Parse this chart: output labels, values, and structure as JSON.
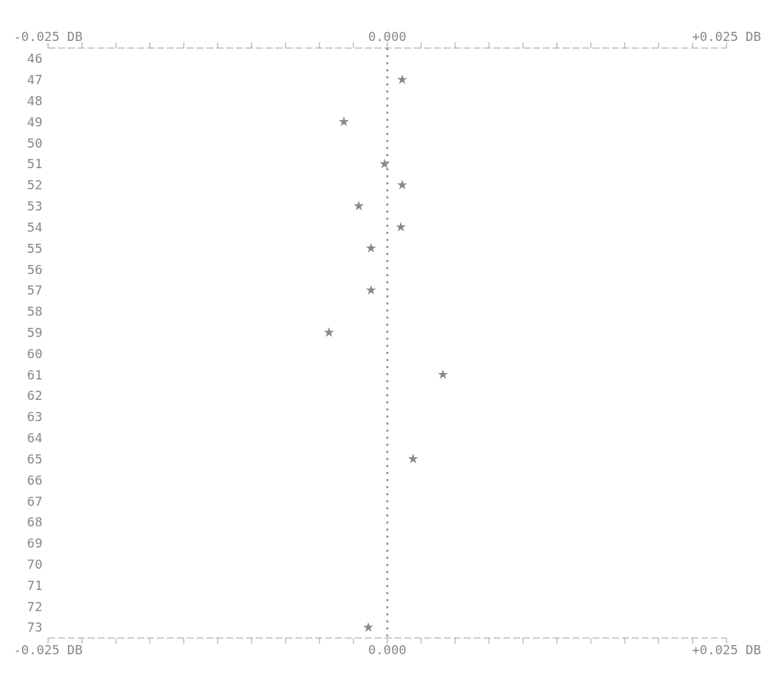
{
  "chart_data": {
    "type": "scatter",
    "orientation": "horizontal",
    "marker": "star",
    "grid": false,
    "categories": [
      "46",
      "47",
      "48",
      "49",
      "50",
      "51",
      "52",
      "53",
      "54",
      "55",
      "56",
      "57",
      "58",
      "59",
      "60",
      "61",
      "62",
      "63",
      "64",
      "65",
      "66",
      "67",
      "68",
      "69",
      "70",
      "71",
      "72",
      "73"
    ],
    "series": [
      {
        "color": "#888888",
        "values": [
          null,
          0.0011,
          null,
          -0.0032,
          null,
          -0.0002,
          0.0011,
          -0.0021,
          0.001,
          -0.0012,
          null,
          -0.0012,
          null,
          -0.0043,
          null,
          0.0041,
          null,
          null,
          null,
          0.0019,
          null,
          null,
          null,
          null,
          null,
          null,
          null,
          -0.0014
        ]
      }
    ],
    "xlim": [
      -0.025,
      0.025
    ],
    "xticks": [
      {
        "value": -0.025,
        "label": "-0.025 DB"
      },
      {
        "value": -0.0225,
        "label": null
      },
      {
        "value": -0.02,
        "label": null
      },
      {
        "value": -0.0175,
        "label": null
      },
      {
        "value": -0.015,
        "label": null
      },
      {
        "value": -0.0125,
        "label": null
      },
      {
        "value": -0.01,
        "label": null
      },
      {
        "value": -0.0075,
        "label": null
      },
      {
        "value": -0.005,
        "label": null
      },
      {
        "value": -0.0025,
        "label": null
      },
      {
        "value": 0,
        "label": "0.000"
      },
      {
        "value": 0.0025,
        "label": null
      },
      {
        "value": 0.005,
        "label": null
      },
      {
        "value": 0.0075,
        "label": null
      },
      {
        "value": 0.01,
        "label": null
      },
      {
        "value": 0.0125,
        "label": null
      },
      {
        "value": 0.015,
        "label": null
      },
      {
        "value": 0.0175,
        "label": null
      },
      {
        "value": 0.02,
        "label": null
      },
      {
        "value": 0.0225,
        "label": null
      },
      {
        "value": 0.025,
        "label": "+0.025 DB"
      }
    ],
    "x2lim": [
      -0.025,
      0.025
    ],
    "x2ticks": [
      {
        "value": -0.025,
        "label": "-0.025 DB"
      },
      {
        "value": -0.0225,
        "label": null
      },
      {
        "value": -0.02,
        "label": null
      },
      {
        "value": -0.0175,
        "label": null
      },
      {
        "value": -0.015,
        "label": null
      },
      {
        "value": -0.0125,
        "label": null
      },
      {
        "value": -0.01,
        "label": null
      },
      {
        "value": -0.0075,
        "label": null
      },
      {
        "value": -0.005,
        "label": null
      },
      {
        "value": -0.0025,
        "label": null
      },
      {
        "value": 0,
        "label": "0.000"
      },
      {
        "value": 0.0025,
        "label": null
      },
      {
        "value": 0.005,
        "label": null
      },
      {
        "value": 0.0075,
        "label": null
      },
      {
        "value": 0.01,
        "label": null
      },
      {
        "value": 0.0125,
        "label": null
      },
      {
        "value": 0.015,
        "label": null
      },
      {
        "value": 0.0175,
        "label": null
      },
      {
        "value": 0.02,
        "label": null
      },
      {
        "value": 0.0225,
        "label": null
      },
      {
        "value": 0.025,
        "label": "+0.025 DB"
      }
    ],
    "ref_lines": [
      {
        "axis": "x",
        "value": 0,
        "line_style": "dotted",
        "color": "#999999"
      }
    ]
  }
}
